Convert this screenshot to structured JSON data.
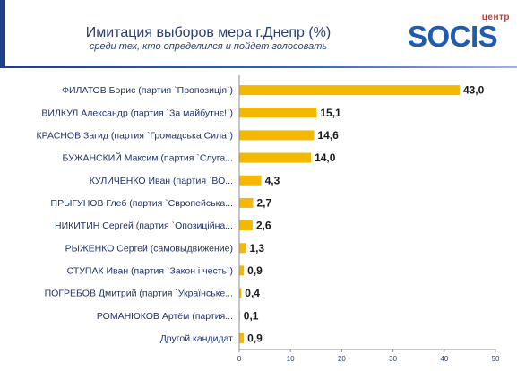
{
  "header": {
    "title": "Имитация выборов мера г.Днепр (%)",
    "subtitle": "среди тех, кто определился и пойдет голосовать"
  },
  "logo": {
    "small_text": "центр",
    "word": "SOCIS"
  },
  "colors": {
    "bar": "#f5b800",
    "brand_blue": "#1f5cb0",
    "brand_red": "#d9322a",
    "axis": "#8c8c8c"
  },
  "chart_data": {
    "type": "bar",
    "orientation": "horizontal",
    "title": "Имитация выборов мера г.Днепр (%)",
    "subtitle": "среди тех, кто определился и пойдет голосовать",
    "categories": [
      "ФИЛАТОВ Борис (партия `Пропозиція`)",
      "ВИЛКУЛ Александр (партия `За майбутнє!`)",
      "КРАСНОВ Загид (партия `Громадська Сила`)",
      "БУЖАНСКИЙ Максим (партия `Слуга...",
      "КУЛИЧЕНКО Иван (партия `ВО...",
      "ПРЫГУНОВ Глеб (партия `Європейська...",
      "НИКИТИН Сергей (партия `Опозиційна...",
      "РЫЖЕНКО Сергей (самовыдвижение)",
      "СТУПАК Иван (партия `Закон і честь`)",
      "ПОГРЕБОВ Дмитрий (партия `Українське...",
      "РОМАНЮКОВ Артём (партия...",
      "Другой кандидат"
    ],
    "values": [
      43.0,
      15.1,
      14.6,
      14.0,
      4.3,
      2.7,
      2.6,
      1.3,
      0.9,
      0.4,
      0.1,
      0.9
    ],
    "value_labels": [
      "43,0",
      "15,1",
      "14,6",
      "14,0",
      "4,3",
      "2,7",
      "2,6",
      "1,3",
      "0,9",
      "0,4",
      "0,1",
      "0,9"
    ],
    "xlim": [
      0,
      50
    ],
    "xticks": [
      0,
      10,
      20,
      30,
      40,
      50
    ],
    "grid": false,
    "legend": "none"
  }
}
